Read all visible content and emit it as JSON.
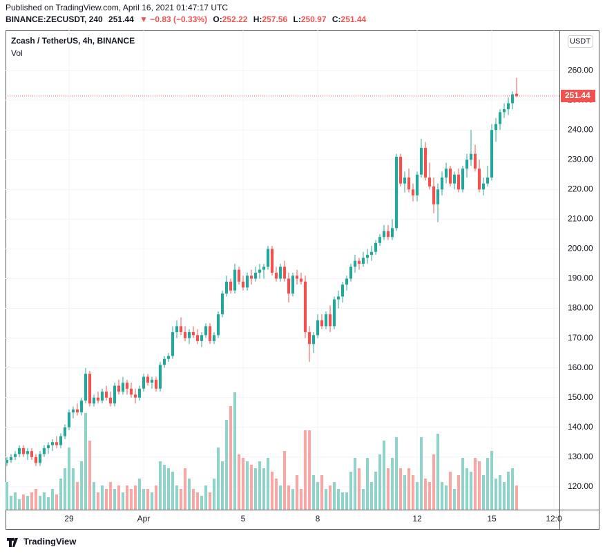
{
  "header": {
    "published": "Published on TradingView.com, April 16, 2021 01:47:17 UTC",
    "symbol": "BINANCE:ZECUSDT, 240",
    "change": "▼ −0.83 (−0.33%)",
    "o": "O:",
    "h": "H:",
    "l": "L:",
    "c": "C:"
  },
  "footer": {
    "brand": "TradingView"
  },
  "chart_data": {
    "type": "candlestick",
    "title": "Zcash / TetherUS, 4h, BINANCE",
    "volume_label": "Vol",
    "currency": "USDT",
    "up_color": "#26a69a",
    "down_color": "#ef5350",
    "up_volume_color": "#92d2cb",
    "down_volume_color": "#f5a9a7",
    "grid": true,
    "ylim": [
      112.3,
      273.5
    ],
    "xlim": [
      -0.33,
      133.33
    ],
    "yticks": [
      {
        "value": 120,
        "label": "120.00"
      },
      {
        "value": 130,
        "label": "130.00"
      },
      {
        "value": 140,
        "label": "140.00"
      },
      {
        "value": 150,
        "label": "150.00"
      },
      {
        "value": 160,
        "label": "160.00"
      },
      {
        "value": 170,
        "label": "170.00"
      },
      {
        "value": 180,
        "label": "180.00"
      },
      {
        "value": 190,
        "label": "190.00"
      },
      {
        "value": 200,
        "label": "200.00"
      },
      {
        "value": 210,
        "label": "210.00"
      },
      {
        "value": 220,
        "label": "220.00"
      },
      {
        "value": 230,
        "label": "230.00"
      },
      {
        "value": 240,
        "label": "240.00"
      },
      {
        "value": 250,
        "label": "250.00"
      },
      {
        "value": 260,
        "label": "260.00"
      }
    ],
    "xticks": [
      {
        "value": 15,
        "label": "29"
      },
      {
        "value": 33,
        "label": "Apr"
      },
      {
        "value": 57,
        "label": "5"
      },
      {
        "value": 75,
        "label": "8"
      },
      {
        "value": 99,
        "label": "12"
      },
      {
        "value": 117,
        "label": "15"
      },
      {
        "value": 132,
        "label": "12:0"
      }
    ],
    "candles": [
      [
        128,
        130,
        127,
        129,
        40
      ],
      [
        129,
        131,
        128,
        130,
        20
      ],
      [
        130,
        132,
        129,
        131,
        25
      ],
      [
        131,
        134,
        130,
        133,
        15
      ],
      [
        133,
        134,
        130,
        131,
        22
      ],
      [
        131,
        133,
        129,
        132,
        20
      ],
      [
        132,
        133,
        129,
        130,
        25
      ],
      [
        130,
        131,
        127,
        128,
        30
      ],
      [
        128,
        132,
        127,
        131,
        20
      ],
      [
        131,
        134,
        130,
        133,
        25
      ],
      [
        133,
        135,
        131,
        134,
        18
      ],
      [
        134,
        136,
        132,
        135,
        30
      ],
      [
        135,
        137,
        133,
        134,
        22
      ],
      [
        134,
        138,
        133,
        137,
        45
      ],
      [
        137,
        141,
        136,
        140,
        60
      ],
      [
        140,
        146,
        139,
        145,
        90
      ],
      [
        145,
        147,
        143,
        146,
        60
      ],
      [
        146,
        148,
        144,
        145,
        40
      ],
      [
        145,
        150,
        144,
        149,
        70
      ],
      [
        149,
        160,
        148,
        158,
        140
      ],
      [
        158,
        159,
        147,
        148,
        100
      ],
      [
        148,
        151,
        147,
        150,
        40
      ],
      [
        150,
        152,
        148,
        149,
        25
      ],
      [
        149,
        153,
        148,
        152,
        35
      ],
      [
        152,
        154,
        149,
        150,
        30
      ],
      [
        150,
        152,
        147,
        148,
        40
      ],
      [
        148,
        155,
        147,
        154,
        30
      ],
      [
        154,
        156,
        151,
        152,
        35
      ],
      [
        152,
        157,
        151,
        155,
        25
      ],
      [
        155,
        156,
        151,
        153,
        35
      ],
      [
        153,
        155,
        150,
        151,
        30
      ],
      [
        151,
        153,
        148,
        150,
        35
      ],
      [
        150,
        154,
        149,
        153,
        45
      ],
      [
        153,
        158,
        152,
        157,
        30
      ],
      [
        157,
        158,
        154,
        155,
        30
      ],
      [
        155,
        157,
        153,
        156,
        25
      ],
      [
        156,
        157,
        152,
        153,
        35
      ],
      [
        153,
        162,
        152,
        161,
        70
      ],
      [
        161,
        164,
        160,
        163,
        65
      ],
      [
        163,
        165,
        162,
        164,
        60
      ],
      [
        164,
        174,
        163,
        172,
        55
      ],
      [
        172,
        176,
        170,
        174,
        35
      ],
      [
        174,
        177,
        171,
        172,
        30
      ],
      [
        172,
        174,
        169,
        170,
        60
      ],
      [
        170,
        173,
        168,
        172,
        45
      ],
      [
        172,
        174,
        170,
        171,
        30
      ],
      [
        171,
        173,
        168,
        169,
        25
      ],
      [
        169,
        172,
        167,
        171,
        20
      ],
      [
        171,
        175,
        170,
        174,
        35
      ],
      [
        174,
        175,
        168,
        169,
        25
      ],
      [
        169,
        172,
        168,
        171,
        45
      ],
      [
        171,
        179,
        170,
        178,
        90
      ],
      [
        178,
        186,
        177,
        185,
        70
      ],
      [
        185,
        191,
        184,
        189,
        130
      ],
      [
        189,
        190,
        185,
        186,
        150
      ],
      [
        186,
        195,
        185,
        193,
        170
      ],
      [
        193,
        194,
        188,
        189,
        80
      ],
      [
        189,
        191,
        186,
        187,
        75
      ],
      [
        187,
        192,
        186,
        191,
        70
      ],
      [
        191,
        193,
        188,
        190,
        65
      ],
      [
        190,
        194,
        189,
        192,
        60
      ],
      [
        192,
        195,
        190,
        193,
        70
      ],
      [
        193,
        195,
        190,
        194,
        60
      ],
      [
        194,
        201,
        193,
        200,
        75
      ],
      [
        200,
        201,
        191,
        192,
        55
      ],
      [
        192,
        194,
        189,
        190,
        45
      ],
      [
        190,
        195,
        189,
        194,
        35
      ],
      [
        194,
        196,
        189,
        190,
        85
      ],
      [
        190,
        192,
        182,
        185,
        35
      ],
      [
        185,
        192,
        184,
        191,
        30
      ],
      [
        191,
        193,
        188,
        190,
        50
      ],
      [
        190,
        192,
        188,
        189,
        30
      ],
      [
        189,
        191,
        170,
        172,
        115
      ],
      [
        172,
        174,
        162,
        168,
        115
      ],
      [
        168,
        172,
        165,
        171,
        50
      ],
      [
        171,
        178,
        170,
        176,
        40
      ],
      [
        176,
        178,
        173,
        174,
        50
      ],
      [
        174,
        179,
        173,
        178,
        30
      ],
      [
        178,
        181,
        172,
        174,
        35
      ],
      [
        174,
        184,
        173,
        183,
        40
      ],
      [
        183,
        186,
        180,
        184,
        30
      ],
      [
        184,
        189,
        182,
        188,
        25
      ],
      [
        188,
        191,
        186,
        190,
        25
      ],
      [
        190,
        195,
        189,
        194,
        55
      ],
      [
        194,
        198,
        192,
        196,
        75
      ],
      [
        196,
        197,
        193,
        195,
        60
      ],
      [
        195,
        199,
        194,
        197,
        30
      ],
      [
        197,
        200,
        195,
        198,
        75
      ],
      [
        198,
        201,
        196,
        199,
        40
      ],
      [
        199,
        203,
        198,
        202,
        55
      ],
      [
        202,
        205,
        201,
        204,
        80
      ],
      [
        204,
        208,
        203,
        206,
        100
      ],
      [
        206,
        208,
        203,
        204,
        60
      ],
      [
        204,
        210,
        203,
        207,
        75
      ],
      [
        207,
        232,
        206,
        231,
        105
      ],
      [
        231,
        232,
        221,
        222,
        60
      ],
      [
        222,
        226,
        219,
        224,
        50
      ],
      [
        224,
        227,
        219,
        220,
        60
      ],
      [
        220,
        222,
        216,
        218,
        50
      ],
      [
        218,
        226,
        216,
        225,
        40
      ],
      [
        225,
        237,
        224,
        234,
        105
      ],
      [
        234,
        236,
        223,
        224,
        45
      ],
      [
        224,
        229,
        220,
        221,
        40
      ],
      [
        221,
        224,
        212,
        215,
        80
      ],
      [
        215,
        222,
        209,
        220,
        110
      ],
      [
        220,
        226,
        218,
        224,
        40
      ],
      [
        224,
        229,
        222,
        227,
        35
      ],
      [
        227,
        228,
        221,
        222,
        55
      ],
      [
        222,
        226,
        220,
        225,
        30
      ],
      [
        225,
        227,
        219,
        220,
        50
      ],
      [
        220,
        228,
        219,
        227,
        75
      ],
      [
        227,
        232,
        224,
        230,
        60
      ],
      [
        230,
        240,
        228,
        232,
        55
      ],
      [
        232,
        235,
        226,
        227,
        75
      ],
      [
        227,
        230,
        219,
        220,
        70
      ],
      [
        220,
        224,
        218,
        222,
        50
      ],
      [
        222,
        228,
        221,
        224,
        75
      ],
      [
        224,
        242,
        223,
        240,
        85
      ],
      [
        240,
        244,
        236,
        242,
        45
      ],
      [
        242,
        247,
        240,
        246,
        50
      ],
      [
        246,
        249,
        244,
        247,
        40
      ],
      [
        247,
        251,
        245,
        249,
        55
      ],
      [
        249,
        253,
        247,
        252,
        60
      ],
      [
        252.22,
        257.56,
        250.97,
        251.44,
        35
      ]
    ]
  }
}
